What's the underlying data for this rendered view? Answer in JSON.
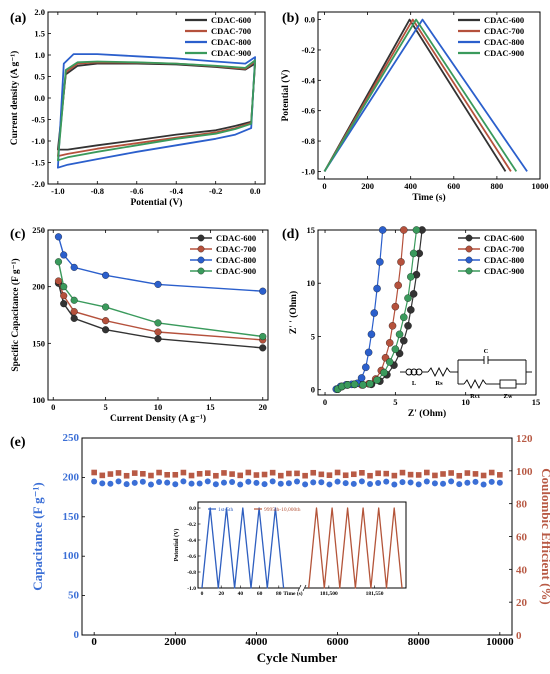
{
  "colors": {
    "CDAC-600": "#333333",
    "CDAC-700": "#b5513c",
    "CDAC-800": "#2b5fcc",
    "CDAC-900": "#3a9a5c",
    "capacitance": "#3b6fd6",
    "coulombic": "#b85a45",
    "inset_blue": "#2f5fc0",
    "inset_red": "#b4553a"
  },
  "chart_data": [
    {
      "id": "a",
      "panel_label": "(a)",
      "type": "line",
      "title": "",
      "xlabel": "Potential (V)",
      "ylabel": "Current density (A g⁻¹)",
      "xlim": [
        -1.05,
        0.05
      ],
      "ylim": [
        -2.0,
        2.0
      ],
      "xticks": [
        -1.0,
        -0.8,
        -0.6,
        -0.4,
        -0.2,
        0.0
      ],
      "xtick_labels": [
        "-1.0",
        "-0.8",
        "-0.6",
        "-0.4",
        "-0.2",
        "0.0"
      ],
      "yticks": [
        -2.0,
        -1.5,
        -1.0,
        -0.5,
        0.0,
        0.5,
        1.0,
        1.5,
        2.0
      ],
      "ytick_labels": [
        "-2.0",
        "-1.5",
        "-1.0",
        "-0.5",
        "0.0",
        "0.5",
        "1.0",
        "1.5",
        "2.0"
      ],
      "legend": "top-right",
      "series": [
        {
          "name": "CDAC-600",
          "upper_x": [
            -1.0,
            -0.96,
            -0.9,
            -0.8,
            -0.6,
            -0.4,
            -0.2,
            -0.05,
            0.0
          ],
          "upper_y": [
            -1.2,
            0.55,
            0.75,
            0.8,
            0.8,
            0.78,
            0.72,
            0.66,
            0.8
          ],
          "lower_x": [
            0.0,
            -0.02,
            -0.1,
            -0.2,
            -0.4,
            -0.6,
            -0.8,
            -0.95,
            -1.0
          ],
          "lower_y": [
            0.8,
            -0.55,
            -0.65,
            -0.75,
            -0.85,
            -0.98,
            -1.1,
            -1.2,
            -1.2
          ]
        },
        {
          "name": "CDAC-700",
          "upper_x": [
            -1.0,
            -0.96,
            -0.9,
            -0.8,
            -0.6,
            -0.4,
            -0.2,
            -0.05,
            0.0
          ],
          "upper_y": [
            -1.35,
            0.6,
            0.8,
            0.83,
            0.82,
            0.8,
            0.74,
            0.68,
            0.85
          ],
          "lower_x": [
            0.0,
            -0.02,
            -0.1,
            -0.2,
            -0.4,
            -0.6,
            -0.8,
            -0.95,
            -1.0
          ],
          "lower_y": [
            0.85,
            -0.58,
            -0.7,
            -0.8,
            -0.92,
            -1.05,
            -1.18,
            -1.3,
            -1.35
          ]
        },
        {
          "name": "CDAC-800",
          "upper_x": [
            -1.0,
            -0.97,
            -0.92,
            -0.8,
            -0.6,
            -0.4,
            -0.2,
            -0.05,
            0.0
          ],
          "upper_y": [
            -1.62,
            0.8,
            1.02,
            1.02,
            0.97,
            0.92,
            0.85,
            0.8,
            0.95
          ],
          "lower_x": [
            0.0,
            -0.02,
            -0.1,
            -0.2,
            -0.4,
            -0.6,
            -0.8,
            -0.95,
            -1.0
          ],
          "lower_y": [
            0.95,
            -0.7,
            -0.85,
            -0.95,
            -1.1,
            -1.25,
            -1.42,
            -1.55,
            -1.62
          ]
        },
        {
          "name": "CDAC-900",
          "upper_x": [
            -1.0,
            -0.96,
            -0.9,
            -0.8,
            -0.6,
            -0.4,
            -0.2,
            -0.05,
            0.0
          ],
          "upper_y": [
            -1.45,
            0.65,
            0.83,
            0.85,
            0.83,
            0.8,
            0.75,
            0.7,
            0.88
          ],
          "lower_x": [
            0.0,
            -0.02,
            -0.1,
            -0.2,
            -0.4,
            -0.6,
            -0.8,
            -0.95,
            -1.0
          ],
          "lower_y": [
            0.88,
            -0.6,
            -0.72,
            -0.83,
            -0.95,
            -1.1,
            -1.25,
            -1.38,
            -1.45
          ]
        }
      ]
    },
    {
      "id": "b",
      "panel_label": "(b)",
      "type": "line",
      "title": "",
      "xlabel": "Time (s)",
      "ylabel": "Potential (V)",
      "xlim": [
        -30,
        1000
      ],
      "ylim": [
        -1.05,
        0.05
      ],
      "xticks": [
        0,
        200,
        400,
        600,
        800,
        1000
      ],
      "xtick_labels": [
        "0",
        "200",
        "400",
        "600",
        "800",
        "1000"
      ],
      "yticks": [
        -1.0,
        -0.8,
        -0.6,
        -0.4,
        -0.2,
        0.0
      ],
      "ytick_labels": [
        "-1.0",
        "-0.8",
        "-0.6",
        "-0.4",
        "-0.2",
        "0.0"
      ],
      "legend": "top-right",
      "series": [
        {
          "name": "CDAC-600",
          "x": [
            0,
            395,
            840
          ],
          "y": [
            -1.0,
            0.0,
            -1.0
          ]
        },
        {
          "name": "CDAC-700",
          "x": [
            0,
            410,
            865
          ],
          "y": [
            -1.0,
            0.0,
            -1.0
          ]
        },
        {
          "name": "CDAC-800",
          "x": [
            0,
            455,
            940
          ],
          "y": [
            -1.0,
            0.0,
            -1.0
          ]
        },
        {
          "name": "CDAC-900",
          "x": [
            0,
            425,
            890
          ],
          "y": [
            -1.0,
            0.0,
            -1.0
          ]
        }
      ]
    },
    {
      "id": "c",
      "panel_label": "(c)",
      "type": "line",
      "title": "",
      "xlabel": "Current Density (A g⁻¹)",
      "ylabel": "Specific Capacitance (F g⁻¹)",
      "xlim": [
        -0.5,
        20.5
      ],
      "ylim": [
        100,
        250
      ],
      "xticks": [
        0,
        5,
        10,
        15,
        20
      ],
      "xtick_labels": [
        "0",
        "5",
        "10",
        "15",
        "20"
      ],
      "yticks": [
        100,
        150,
        200,
        250
      ],
      "ytick_labels": [
        "100",
        "150",
        "200",
        "250"
      ],
      "legend": "top-right",
      "series": [
        {
          "name": "CDAC-600",
          "x": [
            0.5,
            1,
            2,
            5,
            10,
            20
          ],
          "y": [
            203,
            185,
            172,
            162,
            154,
            146
          ]
        },
        {
          "name": "CDAC-700",
          "x": [
            0.5,
            1,
            2,
            5,
            10,
            20
          ],
          "y": [
            205,
            192,
            178,
            170,
            160,
            153
          ]
        },
        {
          "name": "CDAC-800",
          "x": [
            0.5,
            1,
            2,
            5,
            10,
            20
          ],
          "y": [
            244,
            228,
            217,
            210,
            202,
            196
          ]
        },
        {
          "name": "CDAC-900",
          "x": [
            0.5,
            1,
            2,
            5,
            10,
            20
          ],
          "y": [
            222,
            200,
            188,
            182,
            168,
            156
          ]
        }
      ]
    },
    {
      "id": "d",
      "panel_label": "(d)",
      "type": "scatter",
      "title": "",
      "xlabel": "Z' (Ohm)",
      "ylabel": "Z' ' (Ohm)",
      "xlim": [
        -0.5,
        15
      ],
      "ylim": [
        -0.5,
        15
      ],
      "xticks": [
        0,
        5,
        10,
        15
      ],
      "xtick_labels": [
        "0",
        "5",
        "10",
        "15"
      ],
      "yticks": [
        0,
        5,
        10,
        15
      ],
      "ytick_labels": [
        "0",
        "5",
        "10",
        "15"
      ],
      "legend": "top-right",
      "circuit_labels": [
        "L",
        "Rs",
        "C",
        "Rct",
        "Zw"
      ],
      "series": [
        {
          "name": "CDAC-600",
          "x": [
            0.9,
            1.2,
            1.6,
            2.1,
            2.7,
            3.3,
            3.9,
            4.4,
            4.9,
            5.3,
            5.6,
            5.9,
            6.1,
            6.3,
            6.5,
            6.7,
            6.9
          ],
          "y": [
            0.05,
            0.3,
            0.45,
            0.5,
            0.45,
            0.5,
            0.8,
            1.4,
            2.3,
            3.4,
            4.6,
            6.0,
            7.5,
            9.0,
            10.8,
            12.8,
            15.0
          ]
        },
        {
          "name": "CDAC-700",
          "x": [
            0.9,
            1.2,
            1.6,
            2.1,
            2.6,
            3.1,
            3.6,
            4.0,
            4.3,
            4.6,
            4.8,
            5.0,
            5.2,
            5.4,
            5.6
          ],
          "y": [
            0.05,
            0.3,
            0.45,
            0.5,
            0.45,
            0.55,
            1.0,
            1.8,
            3.0,
            4.4,
            6.0,
            7.8,
            9.8,
            12.0,
            15.0
          ]
        },
        {
          "name": "CDAC-800",
          "x": [
            0.8,
            1.1,
            1.5,
            1.9,
            2.3,
            2.6,
            2.9,
            3.1,
            3.3,
            3.5,
            3.7,
            3.9,
            4.1
          ],
          "y": [
            0.05,
            0.3,
            0.45,
            0.5,
            0.6,
            1.1,
            2.1,
            3.5,
            5.2,
            7.2,
            9.5,
            12.0,
            15.0
          ]
        },
        {
          "name": "CDAC-900",
          "x": [
            0.9,
            1.2,
            1.6,
            2.1,
            2.7,
            3.2,
            3.7,
            4.2,
            4.6,
            5.0,
            5.3,
            5.6,
            5.9,
            6.1,
            6.3,
            6.5
          ],
          "y": [
            0.05,
            0.3,
            0.45,
            0.5,
            0.45,
            0.55,
            0.9,
            1.6,
            2.6,
            3.8,
            5.2,
            6.8,
            8.6,
            10.6,
            12.8,
            15.0
          ]
        }
      ]
    },
    {
      "id": "e",
      "panel_label": "(e)",
      "type": "scatter",
      "title": "",
      "xlabel": "Cycle Number",
      "ylabel": "Capacitance (F g⁻¹)",
      "y2label": "Coulombic Efficient (%)",
      "xlim": [
        -300,
        10300
      ],
      "ylim": [
        0,
        250
      ],
      "y2lim": [
        0,
        120
      ],
      "xticks": [
        0,
        2000,
        4000,
        6000,
        8000,
        10000
      ],
      "xtick_labels": [
        "0",
        "2000",
        "4000",
        "6000",
        "8000",
        "10000"
      ],
      "yticks": [
        0,
        50,
        100,
        150,
        200,
        250
      ],
      "ytick_labels": [
        "0",
        "50",
        "100",
        "150",
        "200",
        "250"
      ],
      "y2ticks": [
        0,
        20,
        40,
        60,
        80,
        100,
        120
      ],
      "y2tick_labels": [
        "0",
        "20",
        "40",
        "60",
        "80",
        "100",
        "120"
      ],
      "series": [
        {
          "name": "Capacitance",
          "axis": "left",
          "x_start": 0,
          "x_step": 200,
          "count": 51,
          "y_base": 193,
          "y_jitter": 2
        },
        {
          "name": "Coulombic Efficient",
          "axis": "right",
          "x_start": 0,
          "x_step": 200,
          "count": 51,
          "y_base": 98,
          "y_jitter": 1
        }
      ],
      "inset": {
        "xlabel": "Time (s)",
        "ylabel": "Potential (V)",
        "ylim": [
          -1.0,
          0.0
        ],
        "yticks": [
          -1.0,
          -0.8,
          -0.6,
          -0.4,
          -0.2,
          0.0
        ],
        "ytick_labels": [
          "-1.0",
          "-0.8",
          "-0.6",
          "-0.4",
          "-0.2",
          "0.0"
        ],
        "left_xlim": [
          0,
          100
        ],
        "left_xticks": [
          0,
          20,
          40,
          60,
          80
        ],
        "left_xtick_labels": [
          "0",
          "20",
          "40",
          "60",
          "80"
        ],
        "right_xlim": [
          181475,
          181580
        ],
        "right_xticks": [
          181500,
          181550
        ],
        "right_xtick_labels": [
          "181,500",
          "181,550"
        ],
        "legend": "top-left",
        "series": [
          {
            "name": "1st-5th",
            "segment": "left",
            "x": [
              0,
              8.5,
              17,
              25.5,
              34,
              42.5,
              51,
              59.5,
              68,
              76.5,
              85
            ],
            "y": [
              -1.0,
              0.0,
              -1.0,
              0.0,
              -1.0,
              0.0,
              -1.0,
              0.0,
              -1.0,
              0.0,
              -1.0
            ]
          },
          {
            "name": "9995th-10,000th",
            "segment": "right",
            "x": [
              181478,
              181486.5,
              181495,
              181503.5,
              181512,
              181520.5,
              181529,
              181537.5,
              181546,
              181554.5,
              181563,
              181571.5,
              181580
            ],
            "y": [
              -1.0,
              0.0,
              -1.0,
              0.0,
              -1.0,
              0.0,
              -1.0,
              0.0,
              -1.0,
              0.0,
              -1.0,
              0.0,
              -1.0
            ]
          }
        ]
      }
    }
  ]
}
